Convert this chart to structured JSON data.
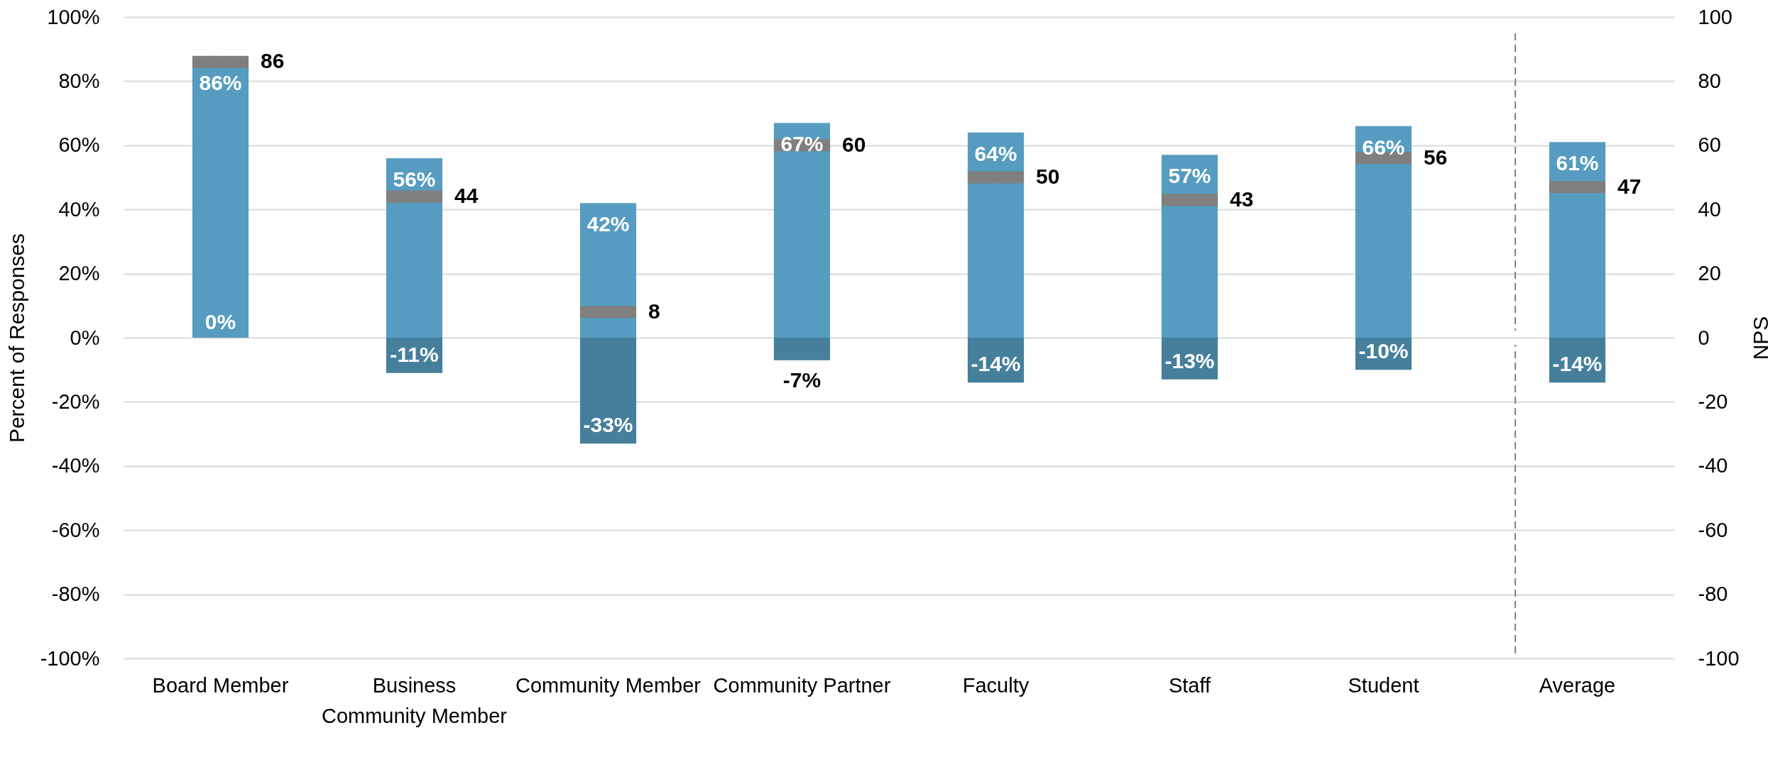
{
  "chart_data": {
    "type": "bar",
    "stacked": true,
    "categories": [
      "Board Member",
      "Business Community Member",
      "Community Member",
      "Community Partner",
      "Faculty",
      "Staff",
      "Student",
      "Average"
    ],
    "series": [
      {
        "type": "bar",
        "color": "#569cc0",
        "values": [
          86,
          56,
          42,
          67,
          64,
          57,
          66,
          61
        ],
        "value_labels": [
          "86%",
          "56%",
          "42%",
          "67%",
          "64%",
          "57%",
          "66%",
          "61%"
        ]
      },
      {
        "type": "bar",
        "color": "#467f9c",
        "values": [
          0,
          -11,
          -33,
          -7,
          -14,
          -13,
          -10,
          -14
        ],
        "value_labels": [
          null,
          "-11%",
          "-33%",
          "-7%",
          "-14%",
          "-13%",
          "-10%",
          "-14%"
        ]
      },
      {
        "type": "scatter",
        "axis": "y2",
        "color": "#7f7f7f",
        "values": [
          86,
          44,
          8,
          60,
          50,
          43,
          56,
          47
        ],
        "value_labels": [
          "86",
          "44",
          "8",
          "60",
          "50",
          "43",
          "56",
          "47"
        ]
      }
    ],
    "annotations": [
      {
        "text": "0%",
        "x": "Board Member",
        "y": 0
      }
    ],
    "ylabel": "Percent of Responses",
    "y2label": "NPS",
    "ylim": [
      -100,
      100
    ],
    "yticks": [
      {
        "value": -100,
        "label": "-100%"
      },
      {
        "value": -80,
        "label": "-80%"
      },
      {
        "value": -60,
        "label": "-60%"
      },
      {
        "value": -40,
        "label": "-40%"
      },
      {
        "value": -20,
        "label": "-20%"
      },
      {
        "value": 0,
        "label": "0%"
      },
      {
        "value": 20,
        "label": "20%"
      },
      {
        "value": 40,
        "label": "40%"
      },
      {
        "value": 60,
        "label": "60%"
      },
      {
        "value": 80,
        "label": "80%"
      },
      {
        "value": 100,
        "label": "100%"
      }
    ],
    "y2lim": [
      -100,
      100
    ],
    "y2ticks": [
      -100,
      -80,
      -60,
      -40,
      -20,
      0,
      20,
      40,
      60,
      80,
      100
    ],
    "grid": "y"
  }
}
